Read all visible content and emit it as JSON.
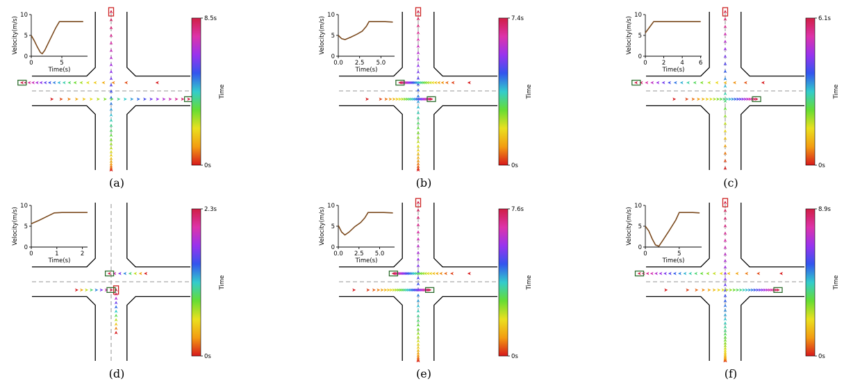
{
  "colors": {
    "road": "#000000",
    "lane_divider": "#aaaaaa",
    "velocity_line": "#7b4a1e",
    "ego_vehicle_box": "#cc2222",
    "other_vehicle_box": "#2f6e2f",
    "colormap": [
      "#d7191c",
      "#f39c12",
      "#eae01f",
      "#66dd33",
      "#33cccc",
      "#3355ee",
      "#9933ee",
      "#dd33aa",
      "#d01e45"
    ]
  },
  "icons": {
    "trajectory_marker": "arrowhead-marker-icon",
    "vehicle": "vehicle-rectangle-icon"
  },
  "chart_data": [
    {
      "panel": "(a)",
      "type": "line+trajectory",
      "velocity": {
        "xlabel": "Time(s)",
        "ylabel": "Velocity(m/s)",
        "xlim": [
          0,
          9.2
        ],
        "ylim": [
          0,
          10
        ],
        "xticks": [
          "0",
          "5"
        ],
        "xtick_values": [
          0,
          5
        ],
        "yticks": [
          "0",
          "5",
          "10"
        ],
        "x": [
          0,
          0.5,
          1.0,
          1.5,
          1.8,
          2.2,
          3.0,
          4.0,
          4.6,
          6.0,
          7.5,
          8.5
        ],
        "y": [
          5.0,
          3.7,
          2.2,
          0.9,
          0.6,
          1.4,
          3.8,
          6.8,
          8.3,
          8.3,
          8.3,
          8.3
        ]
      },
      "colorbar": {
        "label": "Time",
        "min_label": "0s",
        "max_label": "8.5s",
        "min": 0,
        "max": 8.5
      },
      "trajectories": [
        {
          "direction": "up",
          "x": 0,
          "y_start": -2.4,
          "y_end": 2.4,
          "count": 32,
          "spacing_power": 1.6,
          "vehicle_at": "end"
        },
        {
          "direction": "left",
          "y": 0.25,
          "x_start": 1.4,
          "x_end": -2.7,
          "count": 20,
          "spacing_power": 0.5,
          "vehicle_at": "end"
        },
        {
          "direction": "right",
          "y": -0.25,
          "x_start": -1.8,
          "x_end": 2.35,
          "count": 21,
          "spacing_power": 0.9,
          "vehicle_at": "end"
        }
      ]
    },
    {
      "panel": "(b)",
      "type": "line+trajectory",
      "velocity": {
        "xlabel": "Time(s)",
        "ylabel": "Velocity(m/s)",
        "xlim": [
          0,
          6.6
        ],
        "ylim": [
          0,
          10
        ],
        "xticks": [
          "0.0",
          "2.5",
          "5.0"
        ],
        "xtick_values": [
          0,
          2.5,
          5.0
        ],
        "yticks": [
          "0",
          "5",
          "10"
        ],
        "x": [
          0,
          0.4,
          0.8,
          1.5,
          2.2,
          2.8,
          3.3,
          3.6,
          4.5,
          5.5,
          6.4
        ],
        "y": [
          5.0,
          4.2,
          4.0,
          4.6,
          5.3,
          6.0,
          7.2,
          8.3,
          8.3,
          8.3,
          8.2
        ]
      },
      "colorbar": {
        "label": "Time",
        "min_label": "0s",
        "max_label": "7.4s",
        "min": 0,
        "max": 7.4
      },
      "trajectories": [
        {
          "direction": "up",
          "x": 0,
          "y_start": -2.4,
          "y_end": 2.4,
          "count": 32,
          "spacing_power": 1.4,
          "vehicle_at": "end"
        },
        {
          "direction": "left",
          "y": 0.25,
          "x_start": 1.55,
          "x_end": -0.55,
          "count": 26,
          "spacing_power": 0.45,
          "vehicle_at": "end"
        },
        {
          "direction": "right",
          "y": -0.25,
          "x_start": -1.55,
          "x_end": 0.4,
          "count": 24,
          "spacing_power": 0.5,
          "vehicle_at": "end"
        }
      ]
    },
    {
      "panel": "(c)",
      "type": "line+trajectory",
      "velocity": {
        "xlabel": "Time(s)",
        "ylabel": "Velocity(m/s)",
        "xlim": [
          0,
          6.1
        ],
        "ylim": [
          0,
          10
        ],
        "xticks": [
          "0",
          "2",
          "4",
          "6"
        ],
        "xtick_values": [
          0,
          2,
          4,
          6
        ],
        "yticks": [
          "0",
          "5",
          "10"
        ],
        "x": [
          0,
          0.3,
          0.6,
          0.9,
          1.3,
          2.0,
          4.0,
          6.0
        ],
        "y": [
          5.6,
          6.5,
          7.4,
          8.3,
          8.3,
          8.3,
          8.3,
          8.3
        ]
      },
      "colorbar": {
        "label": "Time",
        "min_label": "0s",
        "max_label": "6.1s",
        "min": 0,
        "max": 6.1
      },
      "trajectories": [
        {
          "direction": "up",
          "x": 0,
          "y_start": -2.35,
          "y_end": 2.4,
          "count": 22,
          "spacing_power": 1.0,
          "vehicle_at": "end"
        },
        {
          "direction": "left",
          "y": 0.25,
          "x_start": 1.15,
          "x_end": -2.7,
          "count": 18,
          "spacing_power": 0.7,
          "vehicle_at": "end"
        },
        {
          "direction": "right",
          "y": -0.25,
          "x_start": -1.55,
          "x_end": 0.95,
          "count": 24,
          "spacing_power": 0.6,
          "vehicle_at": "end"
        }
      ]
    },
    {
      "panel": "(d)",
      "type": "line+trajectory",
      "velocity": {
        "xlabel": "Time(s)",
        "ylabel": "Velocity(m/s)",
        "xlim": [
          0,
          2.2
        ],
        "ylim": [
          0,
          10
        ],
        "xticks": [
          "0",
          "1",
          "2"
        ],
        "xtick_values": [
          0,
          1,
          2
        ],
        "yticks": [
          "0",
          "5",
          "10"
        ],
        "x": [
          0,
          0.3,
          0.6,
          0.9,
          1.2,
          1.6,
          2.2
        ],
        "y": [
          5.6,
          6.4,
          7.3,
          8.2,
          8.3,
          8.3,
          8.3
        ]
      },
      "colorbar": {
        "label": "Time",
        "min_label": "0s",
        "max_label": "2.3s",
        "min": 0,
        "max": 2.3
      },
      "trajectories": [
        {
          "direction": "up",
          "x": 0.15,
          "y_start": -1.55,
          "y_end": -0.25,
          "count": 11,
          "spacing_power": 1.0,
          "vehicle_at": "end"
        },
        {
          "direction": "left",
          "y": 0.25,
          "x_start": 1.05,
          "x_end": -0.05,
          "count": 8,
          "spacing_power": 1.0,
          "vehicle_at": "end"
        },
        {
          "direction": "right",
          "y": -0.25,
          "x_start": -1.05,
          "x_end": 0.0,
          "count": 8,
          "spacing_power": 1.0,
          "vehicle_at": "end"
        }
      ]
    },
    {
      "panel": "(e)",
      "type": "line+trajectory",
      "velocity": {
        "xlabel": "Time(s)",
        "ylabel": "Velocity(m/s)",
        "xlim": [
          0,
          6.8
        ],
        "ylim": [
          0,
          10
        ],
        "xticks": [
          "0.0",
          "2.5",
          "5.0"
        ],
        "xtick_values": [
          0,
          2.5,
          5.0
        ],
        "yticks": [
          "0",
          "5",
          "10"
        ],
        "x": [
          0,
          0.4,
          0.8,
          1.3,
          2.0,
          2.7,
          3.2,
          3.6,
          4.5,
          5.5,
          6.6
        ],
        "y": [
          5.2,
          3.6,
          2.9,
          3.6,
          4.9,
          5.9,
          7.0,
          8.3,
          8.3,
          8.3,
          8.2
        ]
      },
      "colorbar": {
        "label": "Time",
        "min_label": "0s",
        "max_label": "7.6s",
        "min": 0,
        "max": 7.6
      },
      "trajectories": [
        {
          "direction": "up",
          "x": 0,
          "y_start": -2.4,
          "y_end": 2.4,
          "count": 34,
          "spacing_power": 1.6,
          "vehicle_at": "end"
        },
        {
          "direction": "left",
          "y": 0.25,
          "x_start": 1.55,
          "x_end": -0.75,
          "count": 28,
          "spacing_power": 0.45,
          "vehicle_at": "end"
        },
        {
          "direction": "right",
          "y": -0.25,
          "x_start": -1.95,
          "x_end": 0.35,
          "count": 30,
          "spacing_power": 0.5,
          "vehicle_at": "end"
        }
      ]
    },
    {
      "panel": "(f)",
      "type": "line+trajectory",
      "velocity": {
        "xlabel": "Time(s)",
        "ylabel": "Velocity(m/s)",
        "xlim": [
          0,
          8.3
        ],
        "ylim": [
          0,
          10
        ],
        "xticks": [
          "0",
          "5"
        ],
        "xtick_values": [
          0,
          5
        ],
        "yticks": [
          "0",
          "5",
          "10"
        ],
        "x": [
          0,
          0.5,
          1.0,
          1.5,
          2.0,
          2.5,
          3.5,
          4.5,
          5.0,
          6.0,
          7.0,
          8.0
        ],
        "y": [
          5.0,
          3.9,
          2.0,
          0.5,
          0.2,
          1.4,
          3.9,
          6.5,
          8.3,
          8.3,
          8.3,
          8.2
        ]
      },
      "colorbar": {
        "label": "Time",
        "min_label": "0s",
        "max_label": "8.9s",
        "min": 0,
        "max": 8.9
      },
      "trajectories": [
        {
          "direction": "up",
          "x": 0,
          "y_start": -2.4,
          "y_end": 2.4,
          "count": 40,
          "spacing_power": 2.0,
          "vehicle_at": "end"
        },
        {
          "direction": "left",
          "y": 0.25,
          "x_start": 1.7,
          "x_end": -2.6,
          "count": 22,
          "spacing_power": 0.6,
          "vehicle_at": "end"
        },
        {
          "direction": "right",
          "y": -0.25,
          "x_start": -1.8,
          "x_end": 1.6,
          "count": 28,
          "spacing_power": 0.5,
          "vehicle_at": "end"
        }
      ]
    }
  ]
}
